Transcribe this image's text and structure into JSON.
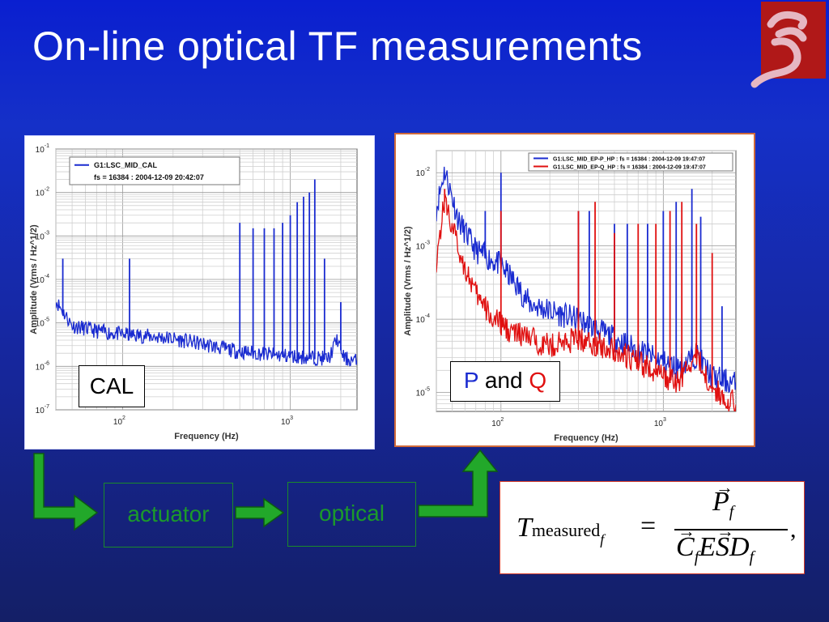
{
  "slide": {
    "title": "On-line optical TF measurements",
    "colors": {
      "background_top": "#0a1fd0",
      "background_bottom": "#141f66",
      "text": "#ffffff",
      "green": "#1b9a2b",
      "p_blue": "#1a2bd0",
      "q_red": "#e01010"
    }
  },
  "logo": {
    "icon": "stylized-xi-logo-icon",
    "colors": [
      "#b01818",
      "#d8a8b8"
    ]
  },
  "boxes": {
    "cal": "CAL",
    "p_and_q": {
      "p": "P",
      "and": " and ",
      "q": "Q"
    },
    "actuator": "actuator",
    "optical": "optical"
  },
  "formula": {
    "lhs_main": "T",
    "lhs_sub": "measured",
    "lhs_subsub": "f",
    "equals": "=",
    "numerator": "P",
    "numerator_sub": "f",
    "denominator": [
      "C",
      "f",
      "E",
      "S",
      "D",
      "f"
    ],
    "trailing": ","
  },
  "chart_data": [
    {
      "type": "line",
      "legend_text": [
        "G1:LSC_MID_CAL",
        "fs = 16384 : 2004-12-09 20:42:07"
      ],
      "xlabel": "Frequency (Hz)",
      "ylabel": "Amplitude (Vrms / Hz^1/2)",
      "x_scale": "log",
      "y_scale": "log",
      "xlim": [
        40,
        2500
      ],
      "ylim": [
        1e-07,
        0.1
      ],
      "x_tick_labels": [
        "10^2",
        "10^3"
      ],
      "y_tick_labels": [
        "10^-7",
        "10^-6",
        "10^-5",
        "10^-4",
        "10^-3",
        "10^-2",
        "10^-1"
      ],
      "grid": true,
      "legend_position": "top-left",
      "series": [
        {
          "color": "#1a2bd0",
          "floor": [
            [
              40,
              3e-05
            ],
            [
              50,
              8e-06
            ],
            [
              70,
              6e-06
            ],
            [
              100,
              5e-06
            ],
            [
              150,
              4.5e-06
            ],
            [
              200,
              4e-06
            ],
            [
              300,
              3e-06
            ],
            [
              500,
              2e-06
            ],
            [
              800,
              1.7e-06
            ],
            [
              1200,
              1.5e-06
            ],
            [
              1700,
              1.4e-06
            ],
            [
              1900,
              4e-06
            ],
            [
              2100,
              1.4e-06
            ],
            [
              2500,
              1.2e-06
            ]
          ],
          "peaks": [
            [
              44,
              0.0003
            ],
            [
              110,
              0.0003
            ],
            [
              500,
              0.002
            ],
            [
              600,
              0.0015
            ],
            [
              700,
              0.0015
            ],
            [
              800,
              0.0015
            ],
            [
              900,
              0.002
            ],
            [
              1000,
              0.003
            ],
            [
              1100,
              0.006
            ],
            [
              1200,
              0.008
            ],
            [
              1300,
              0.01
            ],
            [
              1400,
              0.02
            ],
            [
              1600,
              0.0003
            ],
            [
              2000,
              3e-05
            ]
          ]
        }
      ]
    },
    {
      "type": "line",
      "legend_text": [
        "G1:LSC_MID_EP-P_HP : fs = 16384 : 2004-12-09 19:47:07",
        "G1:LSC_MID_EP-Q_HP : fs = 16384 : 2004-12-09 19:47:07"
      ],
      "xlabel": "Frequency (Hz)",
      "ylabel": "Amplitude (Vrms / Hz^1/2)",
      "x_scale": "log",
      "y_scale": "log",
      "xlim": [
        40,
        2800
      ],
      "ylim": [
        5.5e-06,
        0.02
      ],
      "x_tick_labels": [
        "10^2",
        "10^3"
      ],
      "y_tick_labels": [
        "10^-5",
        "10^-4",
        "10^-3",
        "10^-2"
      ],
      "grid": true,
      "legend_position": "top-right",
      "series": [
        {
          "color": "#1a2bd0",
          "floor": [
            [
              40,
              0.003
            ],
            [
              45,
              0.01
            ],
            [
              55,
              0.002
            ],
            [
              70,
              0.0008
            ],
            [
              100,
              0.0005
            ],
            [
              120,
              0.0003
            ],
            [
              150,
              0.00015
            ],
            [
              200,
              0.00012
            ],
            [
              300,
              9e-05
            ],
            [
              500,
              5e-05
            ],
            [
              800,
              3e-05
            ],
            [
              1200,
              2e-05
            ],
            [
              1600,
              3e-05
            ],
            [
              2000,
              1.5e-05
            ],
            [
              2800,
              1.2e-05
            ]
          ],
          "peaks": [
            [
              80,
              0.003
            ],
            [
              100,
              0.01
            ],
            [
              300,
              0.003
            ],
            [
              350,
              0.003
            ],
            [
              500,
              0.002
            ],
            [
              600,
              0.002
            ],
            [
              800,
              0.002
            ],
            [
              1000,
              0.003
            ],
            [
              1200,
              0.004
            ],
            [
              1500,
              0.006
            ],
            [
              1700,
              0.0025
            ],
            [
              2300,
              0.00015
            ]
          ]
        },
        {
          "color": "#e01010",
          "floor": [
            [
              40,
              0.0006
            ],
            [
              45,
              0.004
            ],
            [
              55,
              0.0008
            ],
            [
              70,
              0.0002
            ],
            [
              90,
              9e-05
            ],
            [
              120,
              6e-05
            ],
            [
              200,
              4e-05
            ],
            [
              300,
              5e-05
            ],
            [
              500,
              3.5e-05
            ],
            [
              800,
              2e-05
            ],
            [
              1200,
              1.2e-05
            ],
            [
              1600,
              3e-05
            ],
            [
              2000,
              1e-05
            ],
            [
              2800,
              6.5e-06
            ]
          ],
          "peaks": [
            [
              45,
              0.006
            ],
            [
              100,
              0.003
            ],
            [
              300,
              0.003
            ],
            [
              380,
              0.004
            ],
            [
              500,
              0.0015
            ],
            [
              700,
              0.002
            ],
            [
              900,
              0.002
            ],
            [
              1100,
              0.003
            ],
            [
              1300,
              0.004
            ],
            [
              1600,
              0.002
            ],
            [
              2000,
              0.0008
            ]
          ]
        }
      ]
    }
  ]
}
